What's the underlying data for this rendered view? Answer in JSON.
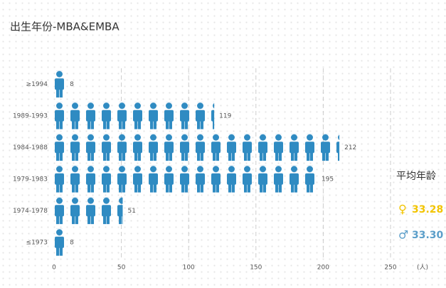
{
  "chart_data": {
    "type": "pictogram-bar",
    "title": "出生年份-MBA&EMBA",
    "categories": [
      "≥1994",
      "1989-1993",
      "1984-1988",
      "1979-1983",
      "1974-1978",
      "≤1973"
    ],
    "values": [
      8,
      119,
      212,
      195,
      51,
      8
    ],
    "color": "#2f8bc2",
    "xlim": [
      0,
      250
    ],
    "xticks": [
      0,
      50,
      100,
      150,
      200,
      250
    ],
    "x_unit": "(人)",
    "grid": true,
    "side_panel": {
      "title": "平均年龄",
      "female": {
        "symbol": "♀",
        "value": "33.28",
        "color": "#f2c400"
      },
      "male": {
        "symbol": "♂",
        "value": "33.30",
        "color": "#5b9ec9"
      }
    }
  }
}
